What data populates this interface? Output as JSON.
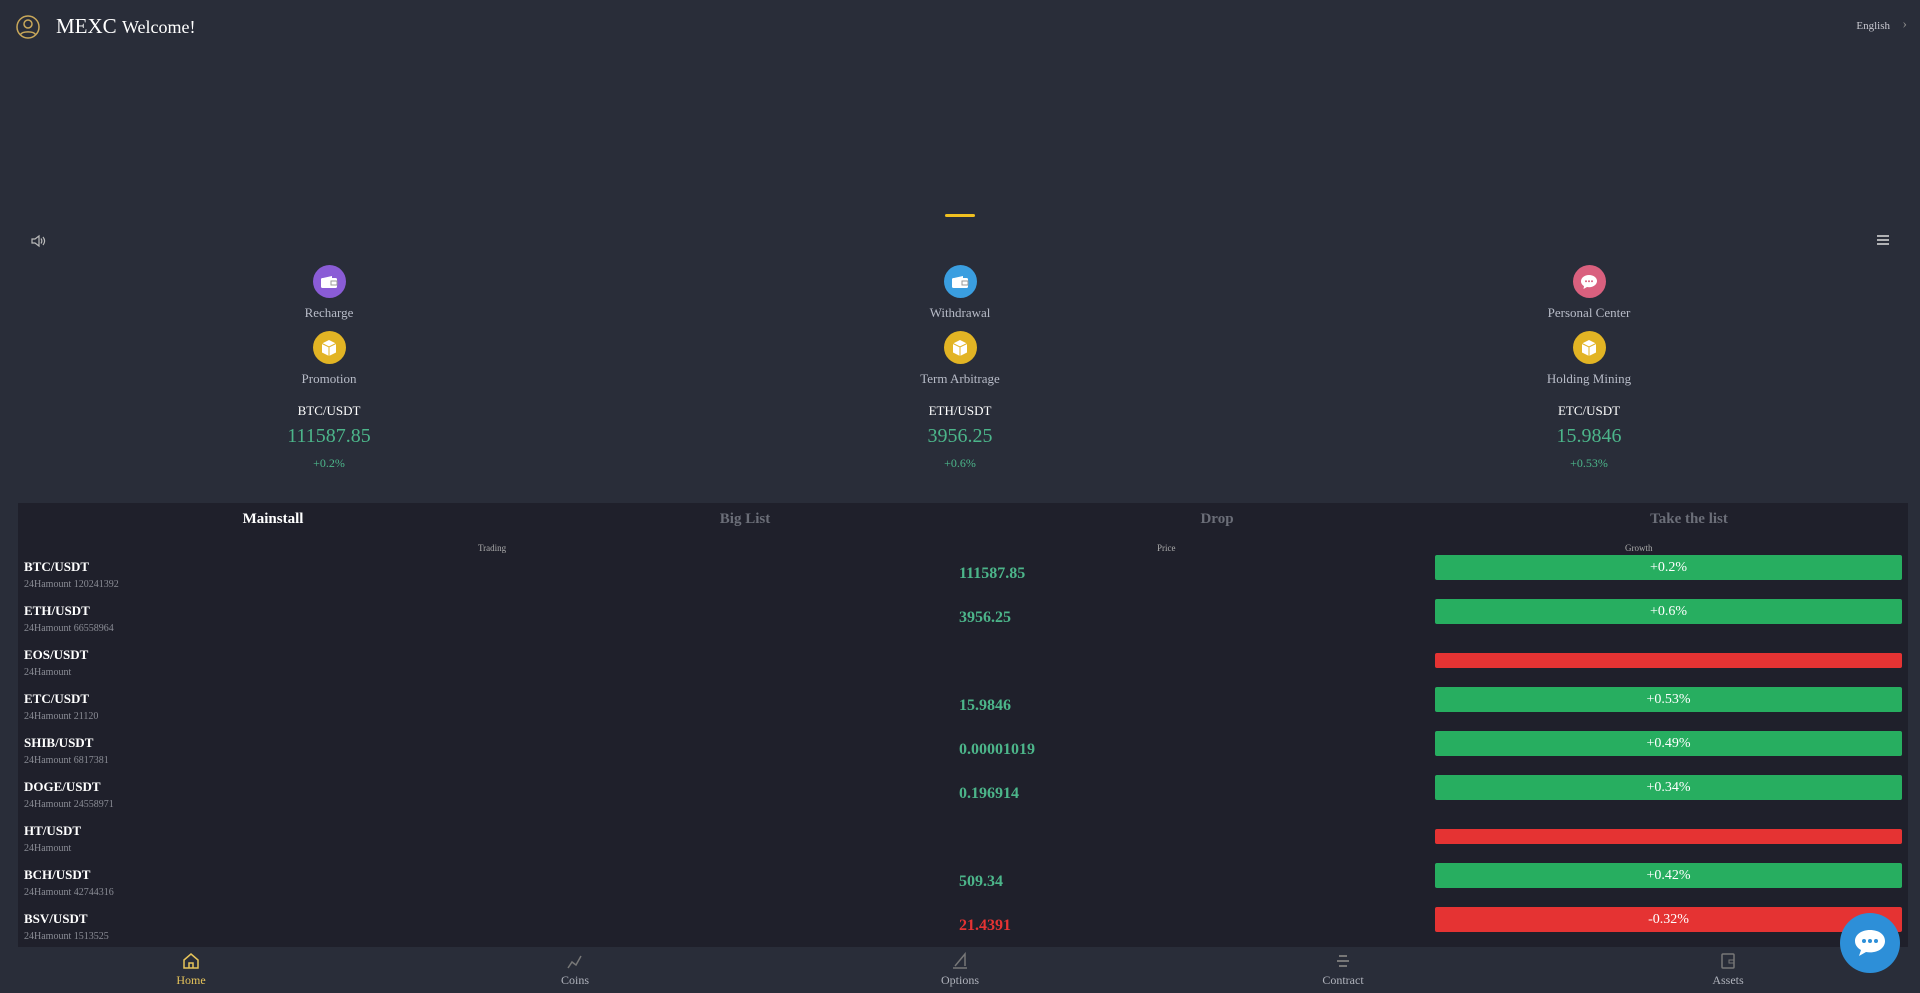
{
  "header": {
    "brand": "MEXC",
    "welcome": "Welcome!",
    "language": "English"
  },
  "quick_actions": [
    {
      "label": "Recharge",
      "icon": "wallet-icon",
      "color": "#8a5cd6"
    },
    {
      "label": "Withdrawal",
      "icon": "wallet-icon",
      "color": "#3a9ee0"
    },
    {
      "label": "Personal Center",
      "icon": "chat-bubble-icon",
      "color": "#d9607e"
    },
    {
      "label": "Promotion",
      "icon": "box-icon",
      "color": "#e2b424"
    },
    {
      "label": "Term Arbitrage",
      "icon": "box-icon",
      "color": "#e2b424"
    },
    {
      "label": "Holding Mining",
      "icon": "box-icon",
      "color": "#e2b424"
    }
  ],
  "tickers": [
    {
      "pair": "BTC/USDT",
      "price": "111587.85",
      "change": "+0.2%"
    },
    {
      "pair": "ETH/USDT",
      "price": "3956.25",
      "change": "+0.6%"
    },
    {
      "pair": "ETC/USDT",
      "price": "15.9846",
      "change": "+0.53%"
    }
  ],
  "market": {
    "tabs": [
      "Mainstall",
      "Big List",
      "Drop",
      "Take the list"
    ],
    "active_tab": "Mainstall",
    "columns": {
      "trading": "Trading",
      "price": "Price",
      "growth": "Growth"
    },
    "colors": {
      "up": "#27ae60",
      "down": "#e53333"
    },
    "rows": [
      {
        "pair": "BTC/USDT",
        "amount": "24Hamount 120241392",
        "price": "111587.85",
        "growth": "+0.2%",
        "dir": "up"
      },
      {
        "pair": "ETH/USDT",
        "amount": "24Hamount 66558964",
        "price": "3956.25",
        "growth": "+0.6%",
        "dir": "up"
      },
      {
        "pair": "EOS/USDT",
        "amount": "24Hamount",
        "price": "",
        "growth": "",
        "dir": "down"
      },
      {
        "pair": "ETC/USDT",
        "amount": "24Hamount 21120",
        "price": "15.9846",
        "growth": "+0.53%",
        "dir": "up"
      },
      {
        "pair": "SHIB/USDT",
        "amount": "24Hamount 6817381",
        "price": "0.00001019",
        "growth": "+0.49%",
        "dir": "up"
      },
      {
        "pair": "DOGE/USDT",
        "amount": "24Hamount 24558971",
        "price": "0.196914",
        "growth": "+0.34%",
        "dir": "up"
      },
      {
        "pair": "HT/USDT",
        "amount": "24Hamount",
        "price": "",
        "growth": "",
        "dir": "down"
      },
      {
        "pair": "BCH/USDT",
        "amount": "24Hamount 42744316",
        "price": "509.34",
        "growth": "+0.42%",
        "dir": "up"
      },
      {
        "pair": "BSV/USDT",
        "amount": "24Hamount 1513525",
        "price": "21.4391",
        "growth": "-0.32%",
        "dir": "down"
      }
    ]
  },
  "nav": [
    {
      "label": "Home",
      "icon": "home-icon",
      "active": true
    },
    {
      "label": "Coins",
      "icon": "chart-line-icon",
      "active": false
    },
    {
      "label": "Options",
      "icon": "options-icon",
      "active": false
    },
    {
      "label": "Contract",
      "icon": "contract-icon",
      "active": false
    },
    {
      "label": "Assets",
      "icon": "wallet-icon",
      "active": false
    }
  ]
}
